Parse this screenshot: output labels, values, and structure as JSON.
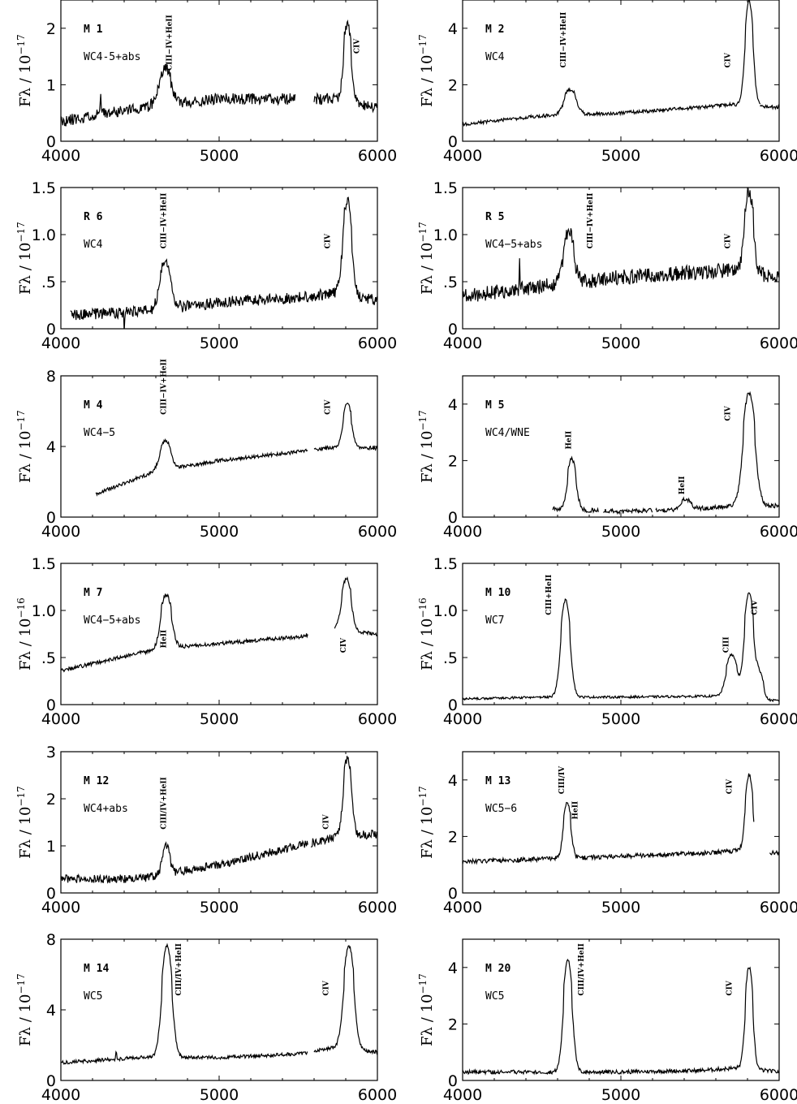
{
  "figure": {
    "x_ticks": [
      "4000",
      "5000",
      "6000"
    ]
  },
  "chart_data": [
    {
      "type": "line",
      "panel_id": "M 1",
      "spectral_type": "WC4-5+abs",
      "ylabel": "Fλ / 10",
      "ylabel_exp": "−17",
      "xlim": [
        4000,
        6000
      ],
      "ylim": [
        0,
        2.5
      ],
      "y_ticks": [
        {
          "value": 0,
          "label": "0"
        },
        {
          "value": 1,
          "label": "1"
        },
        {
          "value": 2,
          "label": "2"
        }
      ],
      "segments": [
        [
          4000,
          5480
        ],
        [
          5600,
          6000
        ]
      ],
      "continuum": [
        [
          4000,
          0.35
        ],
        [
          4500,
          0.6
        ],
        [
          5000,
          0.75
        ],
        [
          5500,
          0.75
        ],
        [
          5700,
          0.75
        ],
        [
          6000,
          0.6
        ]
      ],
      "noise": 0.1,
      "seed": 11,
      "spikes": [
        [
          4250,
          0.35,
          8
        ]
      ],
      "peaks": [
        [
          4660,
          0.65,
          35
        ],
        [
          5810,
          1.4,
          22
        ]
      ],
      "lines": [
        {
          "text": "CIII−IV+HeII",
          "x": 4700,
          "y": 1.25
        },
        {
          "text": "CIV",
          "x": 5885,
          "y": 1.55
        }
      ]
    },
    {
      "type": "line",
      "panel_id": "M 2",
      "spectral_type": "WC4",
      "ylabel": "Fλ / 10",
      "ylabel_exp": "−17",
      "xlim": [
        4000,
        6000
      ],
      "ylim": [
        0,
        5
      ],
      "y_ticks": [
        {
          "value": 0,
          "label": "0"
        },
        {
          "value": 2,
          "label": "2"
        },
        {
          "value": 4,
          "label": "4"
        }
      ],
      "segments": [
        [
          4000,
          5200
        ],
        [
          5200,
          5880
        ],
        [
          5880,
          6000
        ]
      ],
      "continuum": [
        [
          4000,
          0.6
        ],
        [
          4500,
          0.9
        ],
        [
          5000,
          1.0
        ],
        [
          5500,
          1.2
        ],
        [
          5700,
          1.3
        ],
        [
          6000,
          1.2
        ]
      ],
      "noise": 0.06,
      "seed": 12,
      "spikes": [],
      "peaks": [
        [
          4680,
          0.9,
          35
        ],
        [
          5810,
          3.7,
          24
        ]
      ],
      "lines": [
        {
          "text": "CIII−IV+HeII",
          "x": 4650,
          "y": 2.6
        },
        {
          "text": "CIV",
          "x": 5690,
          "y": 2.6
        }
      ]
    },
    {
      "type": "line",
      "panel_id": "R 6",
      "spectral_type": "WC4",
      "ylabel": "Fλ / 10",
      "ylabel_exp": "−17",
      "xlim": [
        4000,
        6000
      ],
      "ylim": [
        0,
        1.5
      ],
      "y_ticks": [
        {
          "value": 0,
          "label": "0"
        },
        {
          "value": 0.5,
          "label": ".5"
        },
        {
          "value": 1,
          "label": "1.0"
        },
        {
          "value": 1.5,
          "label": "1.5"
        }
      ],
      "segments": [
        [
          4060,
          5900
        ],
        [
          5900,
          6000
        ]
      ],
      "continuum": [
        [
          4060,
          0.15
        ],
        [
          4500,
          0.18
        ],
        [
          5000,
          0.28
        ],
        [
          5500,
          0.33
        ],
        [
          5750,
          0.38
        ],
        [
          6000,
          0.3
        ]
      ],
      "noise": 0.06,
      "seed": 13,
      "spikes": [
        [
          4400,
          -0.2,
          5
        ]
      ],
      "peaks": [
        [
          4660,
          0.5,
          32
        ],
        [
          5810,
          1.0,
          26
        ]
      ],
      "lines": [
        {
          "text": "CIII−IV+HeII",
          "x": 4665,
          "y": 0.85
        },
        {
          "text": "CIV",
          "x": 5700,
          "y": 0.85
        }
      ]
    },
    {
      "type": "line",
      "panel_id": "R 5",
      "spectral_type": "WC4−5+abs",
      "ylabel": "Fλ / 10",
      "ylabel_exp": "−17",
      "xlim": [
        4000,
        6000
      ],
      "ylim": [
        0,
        1.5
      ],
      "y_ticks": [
        {
          "value": 0,
          "label": "0"
        },
        {
          "value": 0.5,
          "label": ".5"
        },
        {
          "value": 1,
          "label": "1.0"
        },
        {
          "value": 1.5,
          "label": "1.5"
        }
      ],
      "segments": [
        [
          4000,
          5200
        ],
        [
          5200,
          6000
        ]
      ],
      "continuum": [
        [
          4000,
          0.35
        ],
        [
          4500,
          0.45
        ],
        [
          5000,
          0.55
        ],
        [
          5500,
          0.6
        ],
        [
          5700,
          0.62
        ],
        [
          6000,
          0.55
        ]
      ],
      "noise": 0.08,
      "seed": 14,
      "spikes": [
        [
          4360,
          0.35,
          6
        ]
      ],
      "peaks": [
        [
          4670,
          0.55,
          30
        ],
        [
          5810,
          0.85,
          26
        ]
      ],
      "lines": [
        {
          "text": "CIII−IV+HeII",
          "x": 4820,
          "y": 0.85
        },
        {
          "text": "CIV",
          "x": 5690,
          "y": 0.85
        }
      ]
    },
    {
      "type": "line",
      "panel_id": "M 4",
      "spectral_type": "WC4−5",
      "ylabel": "Fλ / 10",
      "ylabel_exp": "−17",
      "xlim": [
        4000,
        6000
      ],
      "ylim": [
        0,
        8
      ],
      "y_ticks": [
        {
          "value": 0,
          "label": "0"
        },
        {
          "value": 4,
          "label": "4"
        },
        {
          "value": 8,
          "label": "8"
        }
      ],
      "segments": [
        [
          4220,
          5560
        ],
        [
          5600,
          6000
        ]
      ],
      "continuum": [
        [
          4220,
          1.3
        ],
        [
          4600,
          2.6
        ],
        [
          5000,
          3.2
        ],
        [
          5500,
          3.7
        ],
        [
          5750,
          4.0
        ],
        [
          6000,
          3.9
        ]
      ],
      "noise": 0.1,
      "seed": 15,
      "spikes": [],
      "peaks": [
        [
          4660,
          1.6,
          32
        ],
        [
          5810,
          2.5,
          24
        ]
      ],
      "lines": [
        {
          "text": "CIII−IV+HeII",
          "x": 4665,
          "y": 5.8
        },
        {
          "text": "CIV",
          "x": 5700,
          "y": 5.8
        }
      ]
    },
    {
      "type": "line",
      "panel_id": "M 5",
      "spectral_type": "WC4/WNE",
      "ylabel": "Fλ / 10",
      "ylabel_exp": "−17",
      "xlim": [
        4000,
        6000
      ],
      "ylim": [
        0,
        5
      ],
      "y_ticks": [
        {
          "value": 0,
          "label": "0"
        },
        {
          "value": 2,
          "label": "2"
        },
        {
          "value": 4,
          "label": "4"
        }
      ],
      "segments": [
        [
          4570,
          4860
        ],
        [
          4890,
          5200
        ],
        [
          5220,
          5920
        ],
        [
          5920,
          6000
        ]
      ],
      "continuum": [
        [
          4570,
          0.3
        ],
        [
          5000,
          0.2
        ],
        [
          5500,
          0.3
        ],
        [
          5750,
          0.4
        ],
        [
          6000,
          0.4
        ]
      ],
      "noise": 0.08,
      "seed": 16,
      "spikes": [],
      "peaks": [
        [
          4690,
          1.8,
          25
        ],
        [
          5410,
          0.35,
          30
        ],
        [
          5810,
          4.0,
          35
        ]
      ],
      "lines": [
        {
          "text": "HeII",
          "x": 4685,
          "y": 2.4
        },
        {
          "text": "HeII",
          "x": 5400,
          "y": 0.8
        },
        {
          "text": "CIV",
          "x": 5690,
          "y": 3.4
        }
      ]
    },
    {
      "type": "line",
      "panel_id": "M 7",
      "spectral_type": "WC4−5+abs",
      "ylabel": "Fλ / 10",
      "ylabel_exp": "−16",
      "xlim": [
        4000,
        6000
      ],
      "ylim": [
        0,
        1.5
      ],
      "y_ticks": [
        {
          "value": 0,
          "label": "0"
        },
        {
          "value": 0.5,
          "label": ".5"
        },
        {
          "value": 1,
          "label": "1.0"
        },
        {
          "value": 1.5,
          "label": "1.5"
        }
      ],
      "segments": [
        [
          4000,
          5560
        ],
        [
          5730,
          6000
        ]
      ],
      "continuum": [
        [
          4000,
          0.36
        ],
        [
          4500,
          0.55
        ],
        [
          4800,
          0.62
        ],
        [
          5500,
          0.72
        ],
        [
          5750,
          0.8
        ],
        [
          6000,
          0.75
        ]
      ],
      "noise": 0.02,
      "seed": 17,
      "spikes": [],
      "peaks": [
        [
          4665,
          0.58,
          32
        ],
        [
          5805,
          0.55,
          28
        ]
      ],
      "lines": [
        {
          "text": "HeII",
          "x": 4665,
          "y": 0.6
        },
        {
          "text": "CIV",
          "x": 5800,
          "y": 0.55
        }
      ]
    },
    {
      "type": "line",
      "panel_id": "M 10",
      "spectral_type": "WC7",
      "ylabel": "Fλ / 10",
      "ylabel_exp": "−16",
      "xlim": [
        4000,
        6000
      ],
      "ylim": [
        0,
        1.5
      ],
      "y_ticks": [
        {
          "value": 0,
          "label": "0"
        },
        {
          "value": 0.5,
          "label": ".5"
        },
        {
          "value": 1,
          "label": "1.0"
        },
        {
          "value": 1.5,
          "label": "1.5"
        }
      ],
      "segments": [
        [
          4000,
          6000
        ]
      ],
      "continuum": [
        [
          4000,
          0.06
        ],
        [
          4500,
          0.08
        ],
        [
          5000,
          0.08
        ],
        [
          5600,
          0.09
        ],
        [
          6000,
          0.04
        ]
      ],
      "noise": 0.012,
      "seed": 18,
      "spikes": [],
      "peaks": [
        [
          4650,
          1.03,
          28
        ],
        [
          5700,
          0.45,
          32
        ],
        [
          5810,
          1.12,
          28
        ],
        [
          5880,
          0.25,
          20
        ]
      ],
      "lines": [
        {
          "text": "CIII+HeII",
          "x": 4560,
          "y": 0.95
        },
        {
          "text": "CIII",
          "x": 5680,
          "y": 0.55
        },
        {
          "text": "CIV",
          "x": 5860,
          "y": 0.95
        }
      ]
    },
    {
      "type": "line",
      "panel_id": "M 12",
      "spectral_type": "WC4+abs",
      "ylabel": "Fλ / 10",
      "ylabel_exp": "−17",
      "xlim": [
        4000,
        6000
      ],
      "ylim": [
        0,
        3
      ],
      "y_ticks": [
        {
          "value": 0,
          "label": "0"
        },
        {
          "value": 1,
          "label": "1"
        },
        {
          "value": 2,
          "label": "2"
        },
        {
          "value": 3,
          "label": "3"
        }
      ],
      "segments": [
        [
          4000,
          4840
        ],
        [
          4840,
          5560
        ],
        [
          5580,
          6000
        ]
      ],
      "continuum": [
        [
          4000,
          0.3
        ],
        [
          4500,
          0.3
        ],
        [
          5000,
          0.6
        ],
        [
          5500,
          1.0
        ],
        [
          5750,
          1.2
        ],
        [
          6000,
          1.25
        ]
      ],
      "noise": 0.09,
      "seed": 19,
      "spikes": [],
      "peaks": [
        [
          4665,
          0.6,
          22
        ],
        [
          5810,
          1.65,
          24
        ]
      ],
      "lines": [
        {
          "text": "CIII/IV+HeII",
          "x": 4665,
          "y": 1.35
        },
        {
          "text": "CIV",
          "x": 5690,
          "y": 1.35
        }
      ]
    },
    {
      "type": "line",
      "panel_id": "M 13",
      "spectral_type": "WC5−6",
      "ylabel": "Fλ / 10",
      "ylabel_exp": "−17",
      "xlim": [
        4000,
        6000
      ],
      "ylim": [
        0,
        5
      ],
      "y_ticks": [
        {
          "value": 0,
          "label": "0"
        },
        {
          "value": 2,
          "label": "2"
        },
        {
          "value": 4,
          "label": "4"
        }
      ],
      "segments": [
        [
          4000,
          5840
        ],
        [
          5940,
          6000
        ]
      ],
      "continuum": [
        [
          4000,
          1.1
        ],
        [
          4500,
          1.2
        ],
        [
          5000,
          1.3
        ],
        [
          5500,
          1.4
        ],
        [
          5750,
          1.5
        ],
        [
          6000,
          1.4
        ]
      ],
      "noise": 0.08,
      "seed": 20,
      "spikes": [],
      "peaks": [
        [
          4660,
          2.0,
          22
        ],
        [
          5810,
          2.7,
          22
        ]
      ],
      "lines": [
        {
          "text": "CIII/IV",
          "x": 4640,
          "y": 3.5
        },
        {
          "text": "HeII",
          "x": 4725,
          "y": 2.6
        },
        {
          "text": "CIV",
          "x": 5700,
          "y": 3.5
        }
      ]
    },
    {
      "type": "line",
      "panel_id": "M 14",
      "spectral_type": "WC5",
      "ylabel": "Fλ / 10",
      "ylabel_exp": "−17",
      "xlim": [
        4000,
        6000
      ],
      "ylim": [
        0,
        8
      ],
      "y_ticks": [
        {
          "value": 0,
          "label": "0"
        },
        {
          "value": 4,
          "label": "4"
        },
        {
          "value": 8,
          "label": "8"
        }
      ],
      "segments": [
        [
          4000,
          4840
        ],
        [
          4840,
          5560
        ],
        [
          5600,
          6000
        ]
      ],
      "continuum": [
        [
          4000,
          1.0
        ],
        [
          4500,
          1.3
        ],
        [
          5000,
          1.3
        ],
        [
          5500,
          1.5
        ],
        [
          5750,
          1.9
        ],
        [
          6000,
          1.6
        ]
      ],
      "noise": 0.1,
      "seed": 21,
      "spikes": [
        [
          4350,
          0.5,
          6
        ]
      ],
      "peaks": [
        [
          4670,
          6.3,
          30
        ],
        [
          5820,
          5.8,
          30
        ]
      ],
      "lines": [
        {
          "text": "CIII/IV+HeII",
          "x": 4760,
          "y": 4.8
        },
        {
          "text": "CIV",
          "x": 5690,
          "y": 4.8
        }
      ]
    },
    {
      "type": "line",
      "panel_id": "M 20",
      "spectral_type": "WC5",
      "ylabel": "Fλ / 10",
      "ylabel_exp": "−17",
      "xlim": [
        4000,
        6000
      ],
      "ylim": [
        0,
        5
      ],
      "y_ticks": [
        {
          "value": 0,
          "label": "0"
        },
        {
          "value": 2,
          "label": "2"
        },
        {
          "value": 4,
          "label": "4"
        }
      ],
      "segments": [
        [
          4000,
          6000
        ]
      ],
      "continuum": [
        [
          4000,
          0.3
        ],
        [
          4500,
          0.3
        ],
        [
          5000,
          0.3
        ],
        [
          5500,
          0.35
        ],
        [
          5750,
          0.45
        ],
        [
          6000,
          0.3
        ]
      ],
      "noise": 0.07,
      "seed": 22,
      "spikes": [],
      "peaks": [
        [
          4665,
          4.0,
          26
        ],
        [
          5810,
          3.6,
          22
        ]
      ],
      "lines": [
        {
          "text": "CIII/IV+HeII",
          "x": 4765,
          "y": 3.0
        },
        {
          "text": "CIV",
          "x": 5700,
          "y": 3.0
        }
      ]
    }
  ]
}
